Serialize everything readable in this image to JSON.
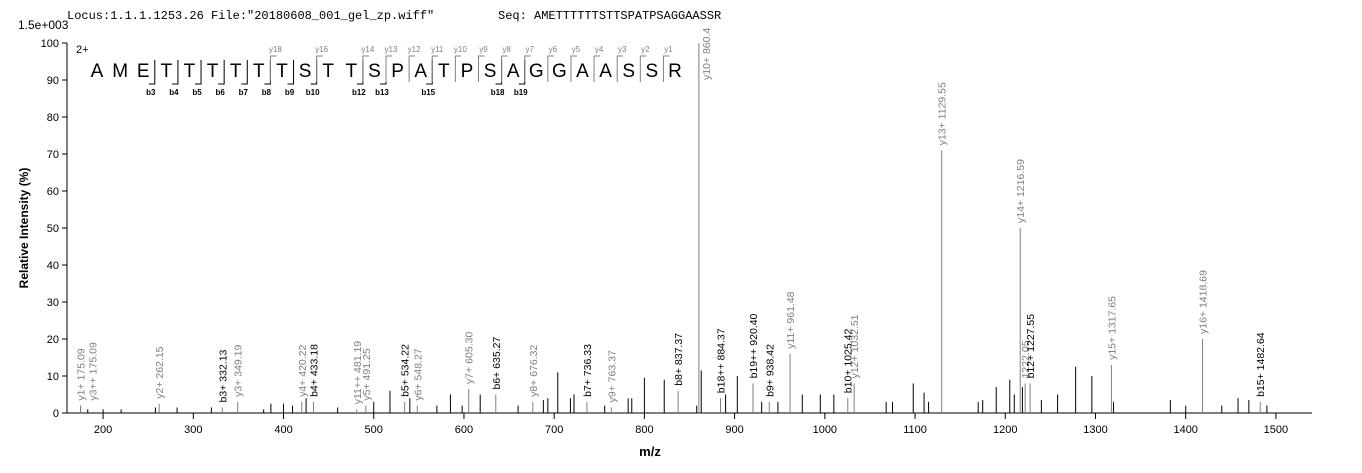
{
  "chart_data": {
    "type": "spectrum",
    "title": "Locus:1.1.1.1253.26 File:\"20180608_001_gel_zp.wiff\"",
    "sequence_label": "Seq: AMETTTTTTSTTSPATPSAGGAASSR",
    "scale_label": "1.5e+003",
    "charge": "2+",
    "xlabel": "m/z",
    "ylabel": "Relative   Intensity (%)",
    "residues": [
      "A",
      "M",
      "E",
      "T",
      "T",
      "T",
      "T",
      "T",
      "T",
      "S",
      "T",
      "T",
      "S",
      "P",
      "A",
      "T",
      "P",
      "S",
      "A",
      "G",
      "G",
      "A",
      "A",
      "S",
      "S",
      "R"
    ],
    "b_ions": [
      "b3",
      "b4",
      "b5",
      "b6",
      "b7",
      "b8",
      "b9",
      "b10",
      "b12",
      "b13",
      "b15",
      "b18",
      "b19"
    ],
    "y_ions": [
      "y18",
      "y16",
      "y14",
      "y13",
      "y12",
      "y11",
      "y10",
      "y9",
      "y8",
      "y7",
      "y6",
      "y5",
      "y4",
      "y3",
      "y2",
      "y1"
    ],
    "xlim": [
      160,
      1540
    ],
    "xticks": [
      200,
      300,
      400,
      500,
      600,
      700,
      800,
      900,
      1000,
      1100,
      1200,
      1300,
      1400,
      1500
    ],
    "ylim": [
      0,
      100
    ],
    "yticks": [
      0,
      10,
      20,
      30,
      40,
      50,
      60,
      70,
      80,
      90,
      100
    ],
    "series": [
      {
        "color": "#808080",
        "x": [
          175.09,
          175.09,
          262.15,
          332.13,
          349.19,
          420.22,
          433.18,
          481.19,
          491.25,
          534.22,
          548.27,
          605.3,
          635.27,
          676.32,
          736.33,
          763.37,
          837.37,
          860.4,
          884.37,
          920.4,
          938.42,
          961.48,
          1025.42,
          1032.51,
          1129.55,
          1216.59,
          1222.05,
          1227.55,
          1317.65,
          1418.69,
          1482.64
        ],
        "values": [
          2,
          2,
          2.5,
          1.5,
          3,
          3,
          3,
          1,
          2,
          3,
          2,
          6.5,
          5,
          3,
          3,
          1.5,
          6,
          100,
          4,
          8,
          3,
          16,
          4,
          8,
          71,
          50,
          8,
          8,
          13,
          20,
          3
        ],
        "labels": [
          "y1+ 175.09",
          "y3++ 175.09",
          "y2+ 262.15",
          "b3+ 332.13",
          "y3+ 349.19",
          "y4+ 420.22",
          "b4+ 433.18",
          "y11++ 481.19",
          "y5+ 491.25",
          "b5+ 534.22",
          "y6+ 548.27",
          "y7+ 605.30",
          "b6+ 635.27",
          "y8+ 676.32",
          "b7+ 736.33",
          "y9+ 763.37",
          "b8+ 837.37",
          "y10+ 860.4",
          "b18++ 884.37",
          "b19++ 920.40",
          "b9+ 938.42",
          "y11+ 961.48",
          "b10+ 1025.42",
          "y12+ 1032.51",
          "y13+ 1129.55",
          "y14+ 1216.59",
          "1222.05",
          "b12+ 1227.55",
          "y15+ 1317.65",
          "y16+ 1418.69",
          "b15+ 1482.64"
        ],
        "label_colors": [
          "#808080",
          "#808080",
          "#808080",
          "#000000",
          "#808080",
          "#808080",
          "#000000",
          "#808080",
          "#808080",
          "#000000",
          "#808080",
          "#808080",
          "#000000",
          "#808080",
          "#000000",
          "#808080",
          "#000000",
          "#808080",
          "#000000",
          "#000000",
          "#000000",
          "#808080",
          "#000000",
          "#808080",
          "#808080",
          "#808080",
          "#808080",
          "#000000",
          "#808080",
          "#808080",
          "#000000"
        ]
      },
      {
        "color": "#000000",
        "x": [
          183,
          200,
          220,
          258,
          282,
          320,
          378,
          386,
          400,
          410,
          425,
          460,
          500,
          518,
          540,
          570,
          585,
          598,
          618,
          660,
          688,
          693,
          704,
          718,
          722,
          756,
          782,
          786,
          800,
          822,
          858,
          863,
          890,
          903,
          930,
          948,
          975,
          995,
          1010,
          1068,
          1075,
          1098,
          1110,
          1115,
          1170,
          1175,
          1190,
          1205,
          1210,
          1219,
          1240,
          1258,
          1278,
          1296,
          1320,
          1383,
          1400,
          1440,
          1458,
          1470,
          1490
        ],
        "values": [
          1,
          1,
          1,
          1.5,
          1.5,
          1.5,
          1,
          2.5,
          2.5,
          2,
          4,
          1.5,
          3,
          6,
          4,
          2,
          5,
          2,
          5,
          2,
          3.5,
          4,
          11,
          4,
          5,
          2,
          4,
          4,
          9.5,
          9,
          2,
          11.5,
          5,
          10,
          3,
          3,
          5,
          5,
          5,
          3,
          3,
          8,
          5.5,
          3,
          3,
          3.5,
          7,
          9,
          5,
          7,
          3.5,
          5,
          12.5,
          10,
          3,
          3.5,
          2,
          2,
          4,
          3.5,
          2
        ]
      }
    ]
  }
}
